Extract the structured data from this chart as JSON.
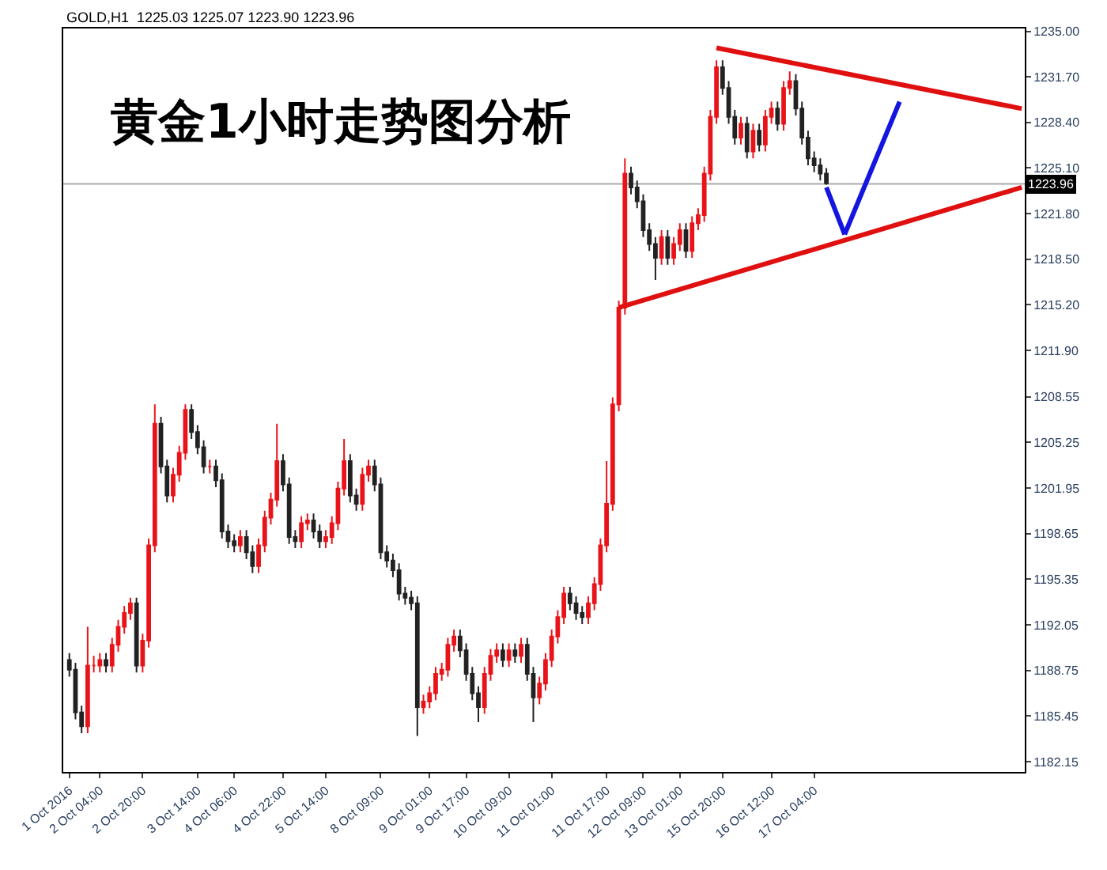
{
  "chart_data": {
    "type": "candlestick",
    "title": "黄金1小时走势图分析",
    "subtitle": "GOLD,H1  1225.03 1225.07 1223.90 1223.96",
    "categories": [
      "1 Oct 2016",
      null,
      null,
      null,
      null,
      "2 Oct 04:00",
      null,
      null,
      null,
      null,
      null,
      null,
      "2 Oct 20:00",
      null,
      null,
      null,
      null,
      null,
      null,
      null,
      null,
      "3 Oct 14:00",
      null,
      null,
      null,
      null,
      null,
      "4 Oct 06:00",
      null,
      null,
      null,
      null,
      null,
      null,
      null,
      "4 Oct 22:00",
      null,
      null,
      null,
      null,
      null,
      null,
      "5 Oct 14:00",
      null,
      null,
      null,
      null,
      null,
      null,
      null,
      null,
      "8 Oct 09:00",
      null,
      null,
      null,
      null,
      null,
      null,
      null,
      "9 Oct 01:00",
      null,
      null,
      null,
      null,
      null,
      "9 Oct 17:00",
      null,
      null,
      null,
      null,
      null,
      null,
      "10 Oct 09:00",
      null,
      null,
      null,
      null,
      null,
      null,
      "11 Oct 01:00",
      null,
      null,
      null,
      null,
      null,
      null,
      null,
      null,
      "11 Oct 17:00",
      null,
      null,
      null,
      null,
      null,
      "12 Oct 09:00",
      null,
      null,
      null,
      null,
      null,
      "13 Oct 01:00",
      null,
      null,
      null,
      null,
      null,
      null,
      "15 Oct 20:00",
      null,
      null,
      null,
      null,
      null,
      null,
      null,
      "16 Oct 12:00",
      null,
      null,
      null,
      null,
      null,
      null,
      "17 Oct 04:00",
      null,
      null,
      null,
      null,
      null,
      null,
      null,
      null,
      null,
      null,
      null,
      null,
      null,
      null,
      null,
      null,
      null,
      null,
      null,
      null,
      null,
      null,
      null,
      null,
      null,
      null,
      null,
      null,
      null,
      null,
      null,
      null,
      null,
      null
    ],
    "ohlc": [
      [
        1189.5,
        1190.0,
        1188.3,
        1188.8
      ],
      [
        1188.8,
        1189.3,
        1185.2,
        1185.7
      ],
      [
        1185.7,
        1186.2,
        1184.2,
        1184.7
      ],
      [
        1184.7,
        1191.9,
        1184.2,
        1189.1
      ],
      [
        1189.1,
        1189.8,
        1188.6,
        1189.1
      ],
      [
        1189.1,
        1190.0,
        1188.6,
        1189.5
      ],
      [
        1189.5,
        1190.0,
        1188.6,
        1189.1
      ],
      [
        1189.1,
        1191.1,
        1188.6,
        1190.6
      ],
      [
        1190.6,
        1192.4,
        1190.1,
        1191.9
      ],
      [
        1191.9,
        1193.4,
        1191.4,
        1192.9
      ],
      [
        1192.9,
        1194.0,
        1192.4,
        1193.6
      ],
      [
        1193.6,
        1194.0,
        1188.6,
        1189.1
      ],
      [
        1189.1,
        1191.4,
        1188.6,
        1190.9
      ],
      [
        1190.9,
        1198.3,
        1190.4,
        1197.8
      ],
      [
        1197.8,
        1208.0,
        1197.3,
        1206.6
      ],
      [
        1206.6,
        1207.1,
        1203.0,
        1203.5
      ],
      [
        1203.5,
        1204.0,
        1200.9,
        1201.4
      ],
      [
        1201.4,
        1203.4,
        1200.9,
        1202.9
      ],
      [
        1202.9,
        1205.0,
        1202.4,
        1204.5
      ],
      [
        1204.5,
        1208.0,
        1204.0,
        1207.6
      ],
      [
        1207.6,
        1208.0,
        1205.5,
        1206.0
      ],
      [
        1206.0,
        1206.5,
        1204.4,
        1204.9
      ],
      [
        1204.9,
        1205.4,
        1203.0,
        1203.5
      ],
      [
        1203.5,
        1204.0,
        1203.0,
        1203.5
      ],
      [
        1203.5,
        1204.0,
        1202.0,
        1202.5
      ],
      [
        1202.5,
        1203.0,
        1198.3,
        1198.8
      ],
      [
        1198.8,
        1199.3,
        1197.6,
        1198.1
      ],
      [
        1198.1,
        1198.6,
        1197.3,
        1197.8
      ],
      [
        1197.8,
        1198.9,
        1197.3,
        1198.4
      ],
      [
        1198.4,
        1198.9,
        1196.8,
        1197.3
      ],
      [
        1197.3,
        1197.8,
        1195.8,
        1196.3
      ],
      [
        1196.3,
        1198.3,
        1195.8,
        1197.8
      ],
      [
        1197.8,
        1200.3,
        1197.3,
        1199.8
      ],
      [
        1199.8,
        1201.6,
        1199.3,
        1201.1
      ],
      [
        1201.1,
        1206.6,
        1200.6,
        1203.9
      ],
      [
        1203.9,
        1204.4,
        1201.7,
        1202.2
      ],
      [
        1202.2,
        1202.7,
        1197.9,
        1198.4
      ],
      [
        1198.4,
        1198.9,
        1197.6,
        1198.1
      ],
      [
        1198.1,
        1199.9,
        1197.6,
        1199.4
      ],
      [
        1199.4,
        1200.1,
        1198.9,
        1199.6
      ],
      [
        1199.6,
        1200.1,
        1198.3,
        1198.8
      ],
      [
        1198.8,
        1199.3,
        1197.6,
        1198.1
      ],
      [
        1198.1,
        1198.9,
        1197.6,
        1198.4
      ],
      [
        1198.4,
        1199.9,
        1197.9,
        1199.4
      ],
      [
        1199.4,
        1202.4,
        1198.9,
        1201.9
      ],
      [
        1201.9,
        1205.5,
        1201.4,
        1203.9
      ],
      [
        1203.9,
        1204.4,
        1200.9,
        1201.4
      ],
      [
        1201.4,
        1201.9,
        1200.3,
        1200.8
      ],
      [
        1200.8,
        1203.4,
        1200.3,
        1202.9
      ],
      [
        1202.9,
        1204.0,
        1202.4,
        1203.5
      ],
      [
        1203.5,
        1204.0,
        1201.7,
        1202.2
      ],
      [
        1202.2,
        1202.7,
        1196.8,
        1197.3
      ],
      [
        1197.3,
        1197.8,
        1196.2,
        1196.7
      ],
      [
        1196.7,
        1197.2,
        1195.5,
        1196.0
      ],
      [
        1196.0,
        1196.5,
        1193.8,
        1194.3
      ],
      [
        1194.3,
        1194.8,
        1193.5,
        1194.0
      ],
      [
        1194.0,
        1194.5,
        1193.1,
        1193.6
      ],
      [
        1193.6,
        1194.1,
        1184.0,
        1186.1
      ],
      [
        1186.1,
        1187.0,
        1185.6,
        1186.5
      ],
      [
        1186.5,
        1187.6,
        1186.0,
        1187.1
      ],
      [
        1187.1,
        1189.0,
        1186.6,
        1188.5
      ],
      [
        1188.5,
        1189.3,
        1188.0,
        1188.8
      ],
      [
        1188.8,
        1191.1,
        1188.3,
        1190.6
      ],
      [
        1190.6,
        1191.7,
        1190.1,
        1191.2
      ],
      [
        1191.2,
        1191.7,
        1189.7,
        1190.2
      ],
      [
        1190.2,
        1190.7,
        1188.0,
        1188.5
      ],
      [
        1188.5,
        1189.0,
        1186.6,
        1187.1
      ],
      [
        1187.1,
        1187.6,
        1185.0,
        1186.1
      ],
      [
        1186.1,
        1189.0,
        1185.6,
        1188.5
      ],
      [
        1188.5,
        1190.3,
        1188.0,
        1189.8
      ],
      [
        1189.8,
        1190.7,
        1189.3,
        1190.2
      ],
      [
        1190.2,
        1190.7,
        1189.0,
        1189.5
      ],
      [
        1189.5,
        1190.7,
        1189.0,
        1190.2
      ],
      [
        1190.2,
        1190.7,
        1189.3,
        1189.8
      ],
      [
        1189.8,
        1191.1,
        1189.3,
        1190.6
      ],
      [
        1190.6,
        1191.1,
        1188.0,
        1188.5
      ],
      [
        1188.5,
        1189.0,
        1185.0,
        1186.8
      ],
      [
        1186.8,
        1188.3,
        1186.3,
        1187.8
      ],
      [
        1187.8,
        1190.0,
        1187.3,
        1189.5
      ],
      [
        1189.5,
        1191.7,
        1189.0,
        1191.2
      ],
      [
        1191.2,
        1193.1,
        1190.7,
        1192.6
      ],
      [
        1192.6,
        1194.8,
        1192.1,
        1194.3
      ],
      [
        1194.3,
        1194.8,
        1193.1,
        1193.6
      ],
      [
        1193.6,
        1194.1,
        1192.4,
        1192.9
      ],
      [
        1192.9,
        1193.4,
        1192.1,
        1192.6
      ],
      [
        1192.6,
        1194.1,
        1192.1,
        1193.6
      ],
      [
        1193.6,
        1195.5,
        1193.1,
        1195.0
      ],
      [
        1195.0,
        1198.3,
        1194.5,
        1197.8
      ],
      [
        1197.8,
        1203.9,
        1197.3,
        1200.8
      ],
      [
        1200.8,
        1208.5,
        1200.3,
        1208.0
      ],
      [
        1208.0,
        1215.5,
        1207.5,
        1215.0
      ],
      [
        1215.0,
        1225.8,
        1214.5,
        1224.7
      ],
      [
        1224.7,
        1225.2,
        1223.2,
        1223.7
      ],
      [
        1223.7,
        1224.2,
        1222.2,
        1222.7
      ],
      [
        1222.7,
        1223.2,
        1220.1,
        1220.6
      ],
      [
        1220.6,
        1221.1,
        1219.1,
        1219.6
      ],
      [
        1219.6,
        1220.1,
        1217.0,
        1218.6
      ],
      [
        1218.6,
        1220.6,
        1218.1,
        1220.1
      ],
      [
        1220.1,
        1220.6,
        1218.1,
        1218.6
      ],
      [
        1218.6,
        1220.1,
        1218.1,
        1219.6
      ],
      [
        1219.6,
        1221.1,
        1219.1,
        1220.6
      ],
      [
        1220.6,
        1221.1,
        1218.6,
        1219.1
      ],
      [
        1219.1,
        1221.6,
        1218.6,
        1221.1
      ],
      [
        1221.1,
        1222.2,
        1220.6,
        1221.7
      ],
      [
        1221.7,
        1225.2,
        1221.2,
        1224.7
      ],
      [
        1224.7,
        1229.3,
        1224.2,
        1228.8
      ],
      [
        1228.8,
        1232.9,
        1228.3,
        1232.4
      ],
      [
        1232.4,
        1232.9,
        1230.4,
        1230.9
      ],
      [
        1230.9,
        1231.4,
        1228.3,
        1228.8
      ],
      [
        1228.8,
        1229.3,
        1226.8,
        1227.3
      ],
      [
        1227.3,
        1228.8,
        1226.8,
        1228.3
      ],
      [
        1228.3,
        1228.8,
        1225.8,
        1226.3
      ],
      [
        1226.3,
        1228.3,
        1225.8,
        1227.8
      ],
      [
        1227.8,
        1228.3,
        1226.3,
        1226.8
      ],
      [
        1226.8,
        1229.3,
        1226.3,
        1228.8
      ],
      [
        1228.8,
        1229.9,
        1228.3,
        1229.4
      ],
      [
        1229.4,
        1229.9,
        1227.8,
        1228.3
      ],
      [
        1228.3,
        1231.4,
        1227.8,
        1230.9
      ],
      [
        1230.9,
        1232.1,
        1230.4,
        1231.4
      ],
      [
        1231.4,
        1231.9,
        1228.9,
        1229.4
      ],
      [
        1229.4,
        1229.9,
        1226.8,
        1227.3
      ],
      [
        1227.3,
        1227.8,
        1225.3,
        1225.8
      ],
      [
        1225.8,
        1226.3,
        1224.8,
        1225.3
      ],
      [
        1225.3,
        1225.8,
        1224.2,
        1224.7
      ],
      [
        1224.7,
        1225.1,
        1223.9,
        1224.0
      ],
      null,
      null,
      null,
      null,
      null,
      null,
      null,
      null,
      null,
      null,
      null,
      null,
      null,
      null,
      null,
      null,
      null,
      null,
      null,
      null,
      null,
      null,
      null,
      null,
      null,
      null,
      null,
      null,
      null,
      null,
      null,
      null
    ],
    "colors": [
      "#222222",
      "#222222",
      "#222222",
      "#e8141a",
      "#e8141a",
      "#e8141a",
      "#222222",
      "#e8141a",
      "#e8141a",
      "#e8141a",
      "#e8141a",
      "#222222",
      "#e8141a",
      "#e8141a",
      "#e8141a",
      "#222222",
      "#222222",
      "#e8141a",
      "#e8141a",
      "#e8141a",
      "#222222",
      "#222222",
      "#222222",
      "#e8141a",
      "#222222",
      "#222222",
      "#222222",
      "#222222",
      "#e8141a",
      "#222222",
      "#222222",
      "#e8141a",
      "#e8141a",
      "#e8141a",
      "#e8141a",
      "#222222",
      "#222222",
      "#222222",
      "#e8141a",
      "#e8141a",
      "#222222",
      "#222222",
      "#e8141a",
      "#e8141a",
      "#e8141a",
      "#e8141a",
      "#222222",
      "#222222",
      "#e8141a",
      "#e8141a",
      "#222222",
      "#222222",
      "#222222",
      "#222222",
      "#222222",
      "#222222",
      "#222222",
      "#222222",
      "#e8141a",
      "#e8141a",
      "#e8141a",
      "#e8141a",
      "#e8141a",
      "#e8141a",
      "#222222",
      "#222222",
      "#222222",
      "#222222",
      "#e8141a",
      "#e8141a",
      "#e8141a",
      "#222222",
      "#e8141a",
      "#222222",
      "#e8141a",
      "#222222",
      "#222222",
      "#e8141a",
      "#e8141a",
      "#e8141a",
      "#e8141a",
      "#e8141a",
      "#222222",
      "#222222",
      "#222222",
      "#e8141a",
      "#e8141a",
      "#e8141a",
      "#e8141a",
      "#e8141a",
      "#e8141a",
      "#e8141a",
      "#222222",
      "#222222",
      "#222222",
      "#222222",
      "#222222",
      "#e8141a",
      "#222222",
      "#e8141a",
      "#e8141a",
      "#222222",
      "#e8141a",
      "#e8141a",
      "#e8141a",
      "#e8141a",
      "#e8141a",
      "#222222",
      "#222222",
      "#222222",
      "#e8141a",
      "#222222",
      "#e8141a",
      "#222222",
      "#e8141a",
      "#e8141a",
      "#222222",
      "#e8141a",
      "#e8141a",
      "#222222",
      "#222222",
      "#222222",
      "#222222",
      "#222222",
      "#222222",
      null,
      null,
      null,
      null,
      null,
      null,
      null,
      null,
      null,
      null,
      null,
      null,
      null,
      null,
      null,
      null,
      null,
      null,
      null,
      null,
      null,
      null,
      null,
      null,
      null,
      null,
      null,
      null,
      null,
      null,
      null,
      null
    ],
    "series": [
      {
        "type": "line",
        "color": "#e01010",
        "values": [
          null,
          null,
          null,
          null,
          null,
          null,
          null,
          null,
          null,
          null,
          null,
          null,
          null,
          null,
          null,
          null,
          null,
          null,
          null,
          null,
          null,
          null,
          null,
          null,
          null,
          null,
          null,
          null,
          null,
          null,
          null,
          null,
          null,
          null,
          null,
          null,
          null,
          null,
          null,
          null,
          null,
          null,
          null,
          null,
          null,
          null,
          null,
          null,
          null,
          null,
          null,
          null,
          null,
          null,
          null,
          null,
          null,
          null,
          null,
          null,
          null,
          null,
          null,
          null,
          null,
          null,
          null,
          null,
          null,
          null,
          null,
          null,
          null,
          null,
          null,
          null,
          null,
          null,
          null,
          null,
          null,
          null,
          null,
          null,
          null,
          null,
          null,
          null,
          null,
          null,
          null,
          null,
          null,
          null,
          null,
          null,
          null,
          null,
          null,
          null,
          null,
          null,
          null,
          null,
          null,
          null,
          1233.8,
          null,
          null,
          null,
          null,
          null,
          null,
          null,
          null,
          null,
          null,
          null,
          null,
          null,
          null,
          null,
          null,
          null,
          null,
          null,
          null,
          null,
          null,
          null,
          null,
          null,
          null,
          null,
          null,
          null,
          null,
          null,
          null,
          null,
          null,
          null,
          null,
          null,
          null,
          null,
          null,
          null,
          null,
          null,
          null,
          null,
          null,
          null,
          null,
          null,
          1229.4
        ]
      },
      {
        "type": "line",
        "color": "#e01010",
        "values": [
          null,
          null,
          null,
          null,
          null,
          null,
          null,
          null,
          null,
          null,
          null,
          null,
          null,
          null,
          null,
          null,
          null,
          null,
          null,
          null,
          null,
          null,
          null,
          null,
          null,
          null,
          null,
          null,
          null,
          null,
          null,
          null,
          null,
          null,
          null,
          null,
          null,
          null,
          null,
          null,
          null,
          null,
          null,
          null,
          null,
          null,
          null,
          null,
          null,
          null,
          null,
          null,
          null,
          null,
          null,
          null,
          null,
          null,
          null,
          null,
          null,
          null,
          null,
          null,
          null,
          null,
          null,
          null,
          null,
          null,
          null,
          null,
          null,
          null,
          null,
          null,
          null,
          null,
          null,
          null,
          null,
          null,
          null,
          null,
          null,
          null,
          null,
          null,
          null,
          null,
          1215.0,
          null,
          null,
          null,
          null,
          null,
          null,
          null,
          null,
          null,
          null,
          null,
          null,
          null,
          null,
          null,
          null,
          null,
          null,
          null,
          null,
          null,
          null,
          null,
          null,
          null,
          null,
          null,
          null,
          null,
          null,
          null,
          null,
          null,
          null,
          null,
          null,
          null,
          null,
          null,
          null,
          null,
          null,
          null,
          null,
          null,
          null,
          null,
          null,
          null,
          null,
          null,
          null,
          null,
          null,
          null,
          null,
          null,
          null,
          null,
          null,
          null,
          null,
          null,
          null,
          null,
          1223.7
        ]
      },
      {
        "type": "line",
        "color": "#1515e0",
        "values": [
          null,
          null,
          null,
          null,
          null,
          null,
          null,
          null,
          null,
          null,
          null,
          null,
          null,
          null,
          null,
          null,
          null,
          null,
          null,
          null,
          null,
          null,
          null,
          null,
          null,
          null,
          null,
          null,
          null,
          null,
          null,
          null,
          null,
          null,
          null,
          null,
          null,
          null,
          null,
          null,
          null,
          null,
          null,
          null,
          null,
          null,
          null,
          null,
          null,
          null,
          null,
          null,
          null,
          null,
          null,
          null,
          null,
          null,
          null,
          null,
          null,
          null,
          null,
          null,
          null,
          null,
          null,
          null,
          null,
          null,
          null,
          null,
          null,
          null,
          null,
          null,
          null,
          null,
          null,
          null,
          null,
          null,
          null,
          null,
          null,
          null,
          null,
          null,
          null,
          null,
          null,
          null,
          null,
          null,
          null,
          null,
          null,
          null,
          null,
          null,
          null,
          null,
          null,
          null,
          null,
          null,
          null,
          null,
          null,
          null,
          null,
          null,
          null,
          null,
          null,
          null,
          null,
          null,
          null,
          null,
          null,
          null,
          null,
          null,
          1223.7,
          null,
          null,
          1220.3,
          null,
          null,
          null,
          null,
          null,
          null,
          null,
          null,
          null,
          null,
          null,
          null,
          null,
          null,
          null,
          null,
          null,
          null,
          null,
          null,
          null,
          null,
          null,
          null,
          null,
          null,
          null,
          null,
          null
        ]
      },
      {
        "type": "line",
        "color": "#1515e0",
        "values": [
          null,
          null,
          null,
          null,
          null,
          null,
          null,
          null,
          null,
          null,
          null,
          null,
          null,
          null,
          null,
          null,
          null,
          null,
          null,
          null,
          null,
          null,
          null,
          null,
          null,
          null,
          null,
          null,
          null,
          null,
          null,
          null,
          null,
          null,
          null,
          null,
          null,
          null,
          null,
          null,
          null,
          null,
          null,
          null,
          null,
          null,
          null,
          null,
          null,
          null,
          null,
          null,
          null,
          null,
          null,
          null,
          null,
          null,
          null,
          null,
          null,
          null,
          null,
          null,
          null,
          null,
          null,
          null,
          null,
          null,
          null,
          null,
          null,
          null,
          null,
          null,
          null,
          null,
          null,
          null,
          null,
          null,
          null,
          null,
          null,
          null,
          null,
          null,
          null,
          null,
          null,
          null,
          null,
          null,
          null,
          null,
          null,
          null,
          null,
          null,
          null,
          null,
          null,
          null,
          null,
          null,
          null,
          null,
          null,
          null,
          null,
          null,
          null,
          null,
          null,
          null,
          null,
          null,
          null,
          null,
          null,
          null,
          null,
          null,
          null,
          null,
          null,
          1220.3,
          null,
          null,
          null,
          null,
          null,
          null,
          null,
          null,
          1229.9,
          null,
          null,
          null,
          null,
          null,
          null,
          null,
          null,
          null,
          null,
          null,
          null,
          null,
          null,
          null,
          null,
          null,
          null,
          null,
          null
        ]
      }
    ],
    "ref_lines": [
      {
        "axis": "y",
        "value": 1223.96,
        "label": "1223.96",
        "color": "#aaaaaa"
      }
    ],
    "ylim": [
      1181.4,
      1235.2
    ],
    "yticks": [
      {
        "value": 1235.0,
        "label": "1235.00"
      },
      {
        "value": 1231.7,
        "label": "1231.70"
      },
      {
        "value": 1228.4,
        "label": "1228.40"
      },
      {
        "value": 1225.1,
        "label": "1225.10"
      },
      {
        "value": 1221.8,
        "label": "1221.80"
      },
      {
        "value": 1218.5,
        "label": "1218.50"
      },
      {
        "value": 1215.2,
        "label": "1215.20"
      },
      {
        "value": 1211.9,
        "label": "1211.90"
      },
      {
        "value": 1208.55,
        "label": "1208.55"
      },
      {
        "value": 1205.25,
        "label": "1205.25"
      },
      {
        "value": 1201.95,
        "label": "1201.95"
      },
      {
        "value": 1198.65,
        "label": "1198.65"
      },
      {
        "value": 1195.35,
        "label": "1195.35"
      },
      {
        "value": 1192.05,
        "label": "1192.05"
      },
      {
        "value": 1188.75,
        "label": "1188.75"
      },
      {
        "value": 1185.45,
        "label": "1185.45"
      },
      {
        "value": 1182.15,
        "label": "1182.15"
      }
    ],
    "grid": false
  }
}
